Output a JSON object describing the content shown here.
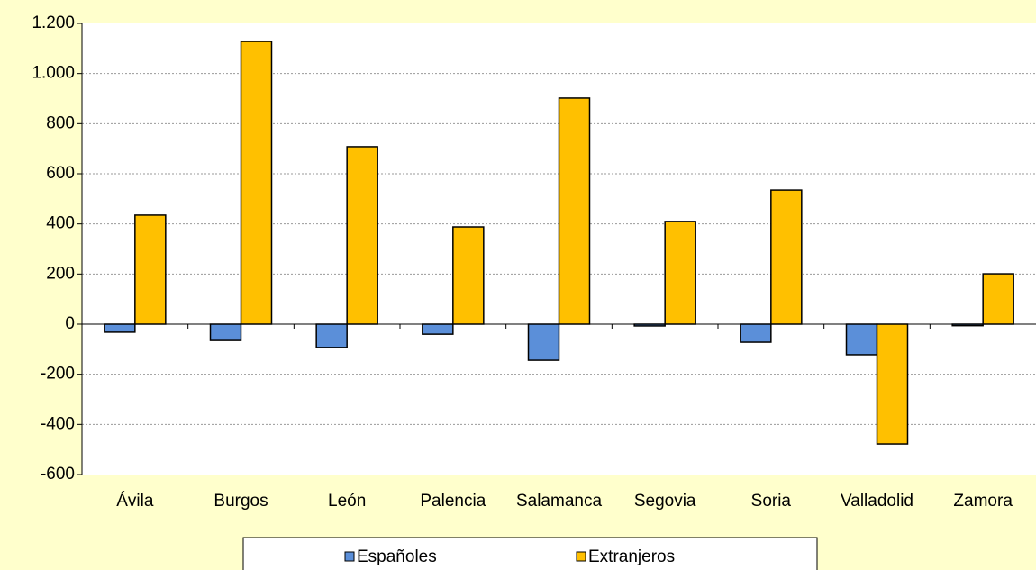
{
  "chart_data": {
    "type": "bar",
    "categories": [
      "Ávila",
      "Burgos",
      "León",
      "Palencia",
      "Salamanca",
      "Segovia",
      "Soria",
      "Valladolid",
      "Zamora"
    ],
    "series": [
      {
        "name": "Españoles",
        "color": "#5b8fd9",
        "values": [
          -32,
          -65,
          -93,
          -40,
          -144,
          -7,
          -72,
          -122,
          -6
        ]
      },
      {
        "name": "Extranjeros",
        "color": "#ffc000",
        "values": [
          435,
          1128,
          708,
          388,
          902,
          410,
          535,
          -478,
          201
        ]
      }
    ],
    "ylim": [
      -600,
      1200
    ],
    "yticks": [
      -600,
      -400,
      -200,
      0,
      200,
      400,
      600,
      800,
      {
        "value": 1000,
        "label": "1.000"
      },
      {
        "value": 1200,
        "label": "1.200"
      }
    ],
    "grid": true
  }
}
